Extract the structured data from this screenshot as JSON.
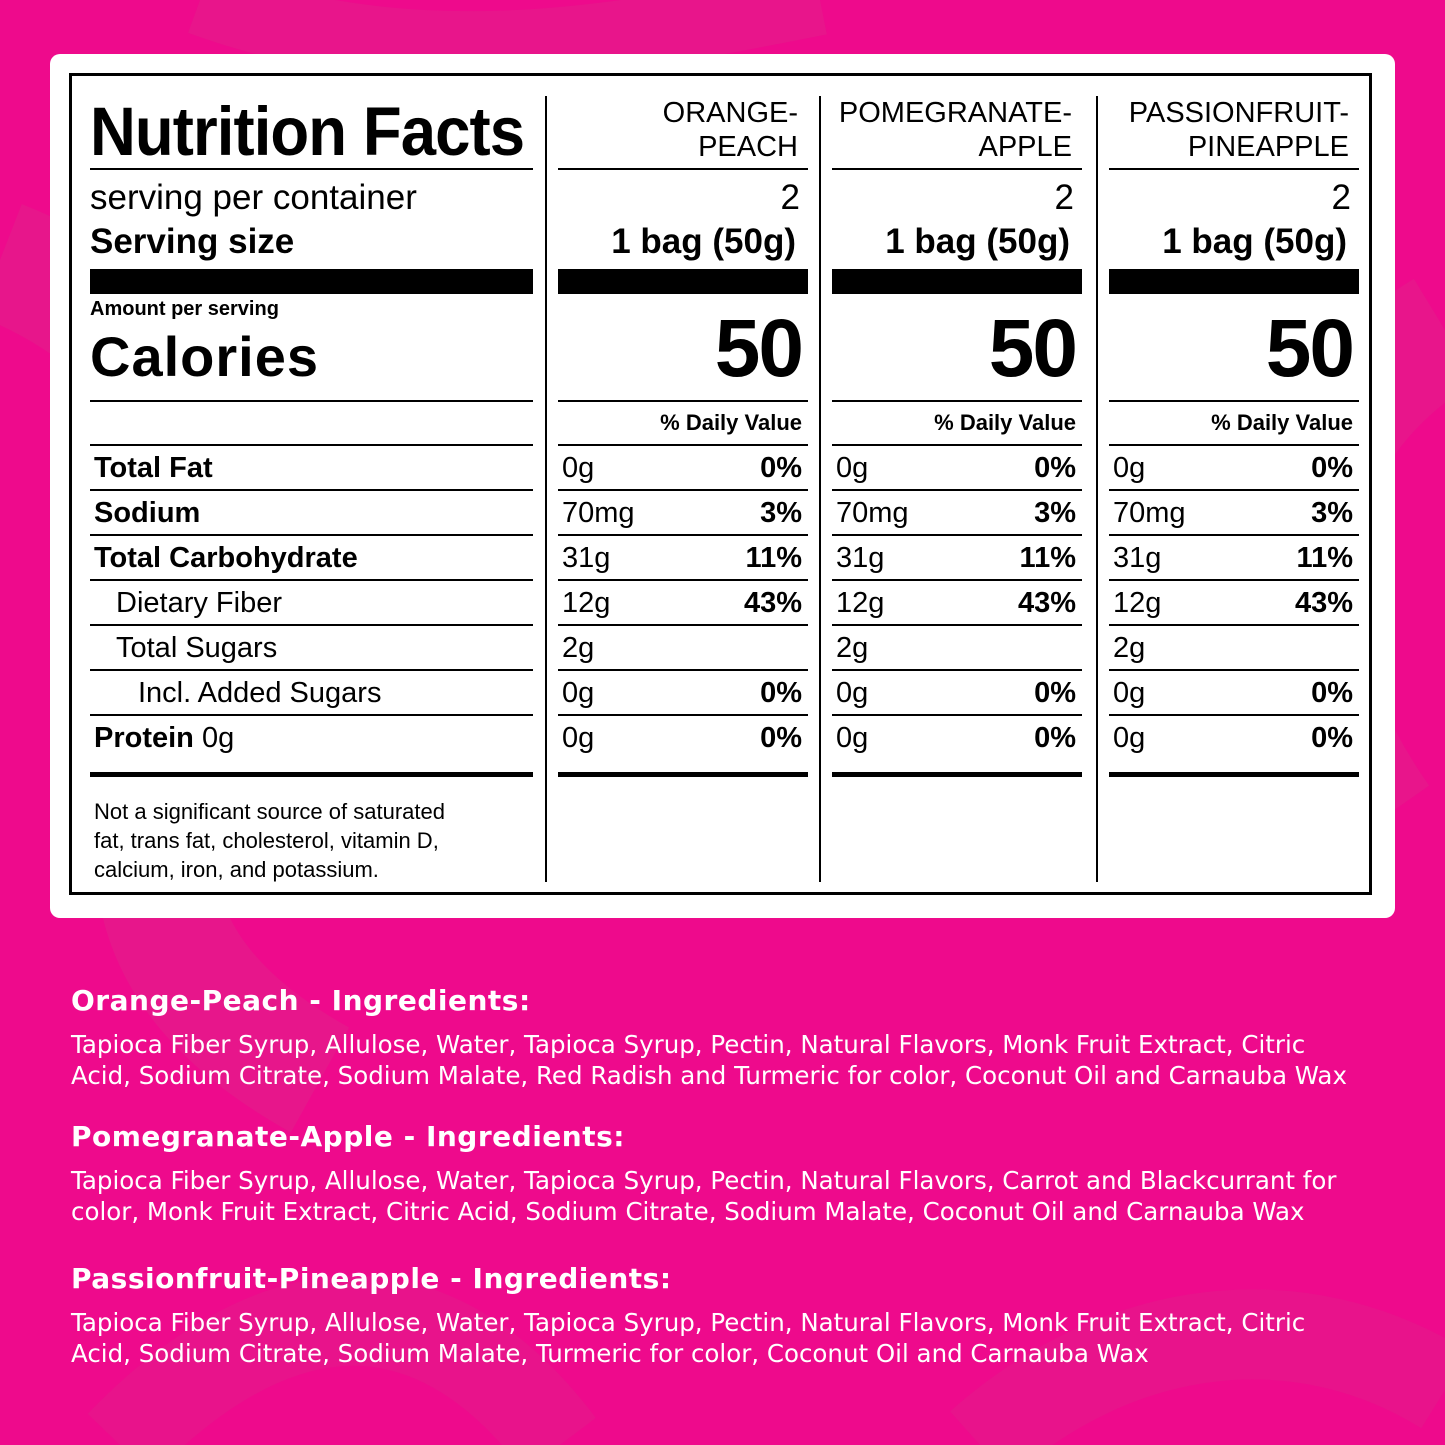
{
  "colors": {
    "background": "#EE0A8C",
    "card": "#FFFFFF",
    "text_on_pink": "#FFFFFF"
  },
  "label": {
    "title": "Nutrition Facts",
    "serving_per_container": "serving per container",
    "serving_size": "Serving size",
    "amount_per_serving": "Amount per serving",
    "calories": "Calories",
    "daily_value": "% Daily Value",
    "nutrients": [
      "Total Fat",
      "Sodium",
      "Total Carbohydrate",
      "Dietary Fiber",
      "Total Sugars",
      "Incl. Added Sugars"
    ],
    "protein": "Protein",
    "protein_amount": "0g",
    "footnote": "Not a significant source of saturated fat, trans fat, cholesterol, vitamin D, calcium, iron, and potassium."
  },
  "flavors": [
    {
      "name_line1": "ORANGE-",
      "name_line2": "PEACH",
      "servings": "2",
      "serving_size": "1 bag (50g)",
      "calories": "50",
      "rows": [
        {
          "amount": "0g",
          "dv": "0%"
        },
        {
          "amount": "70mg",
          "dv": "3%"
        },
        {
          "amount": "31g",
          "dv": "11%"
        },
        {
          "amount": "12g",
          "dv": "43%"
        },
        {
          "amount": "2g",
          "dv": ""
        },
        {
          "amount": "0g",
          "dv": "0%"
        },
        {
          "amount": "0g",
          "dv": "0%"
        }
      ]
    },
    {
      "name_line1": "POMEGRANATE-",
      "name_line2": "APPLE",
      "servings": "2",
      "serving_size": "1 bag (50g)",
      "calories": "50",
      "rows": [
        {
          "amount": "0g",
          "dv": "0%"
        },
        {
          "amount": "70mg",
          "dv": "3%"
        },
        {
          "amount": "31g",
          "dv": "11%"
        },
        {
          "amount": "12g",
          "dv": "43%"
        },
        {
          "amount": "2g",
          "dv": ""
        },
        {
          "amount": "0g",
          "dv": "0%"
        },
        {
          "amount": "0g",
          "dv": "0%"
        }
      ]
    },
    {
      "name_line1": "PASSIONFRUIT-",
      "name_line2": "PINEAPPLE",
      "servings": "2",
      "serving_size": "1 bag (50g)",
      "calories": "50",
      "rows": [
        {
          "amount": "0g",
          "dv": "0%"
        },
        {
          "amount": "70mg",
          "dv": "3%"
        },
        {
          "amount": "31g",
          "dv": "11%"
        },
        {
          "amount": "12g",
          "dv": "43%"
        },
        {
          "amount": "2g",
          "dv": ""
        },
        {
          "amount": "0g",
          "dv": "0%"
        },
        {
          "amount": "0g",
          "dv": "0%"
        }
      ]
    }
  ],
  "ingredients": [
    {
      "title": "Orange-Peach - Ingredients:",
      "line1": "Tapioca Fiber Syrup, Allulose, Water, Tapioca Syrup, Pectin, Natural Flavors, Monk Fruit  Extract, Citric",
      "line2": "Acid, Sodium  Citrate, Sodium Malate, Red  Radish and Turmeric for color,  Coconut Oil and Carnauba Wax"
    },
    {
      "title": "Pomegranate-Apple - Ingredients:",
      "line1": "Tapioca Fiber Syrup, Allulose, Water, Tapioca Syrup, Pectin, Natural Flavors, Carrot and Blackcurrant for",
      "line2": "color, Monk Fruit Extract, Citric Acid, Sodium Citrate, Sodium Malate, Coconut Oil and Carnauba Wax"
    },
    {
      "title": "Passionfruit-Pineapple - Ingredients:",
      "line1": "Tapioca Fiber Syrup, Allulose, Water, Tapioca Syrup, Pectin, Natural Flavors, Monk Fruit Extract, Citric",
      "line2": "Acid, Sodium Citrate, Sodium Malate, Turmeric for color, Coconut Oil and Carnauba Wax"
    }
  ]
}
